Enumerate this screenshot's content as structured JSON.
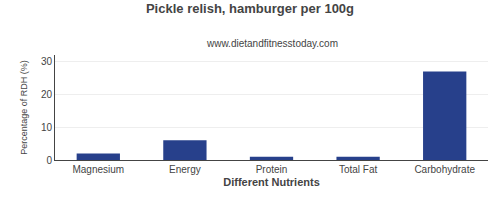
{
  "chart_data": {
    "type": "bar",
    "title": "Pickle relish, hamburger per 100g",
    "subtitle": "www.dietandfitnesstoday.com",
    "categories": [
      "Magnesium",
      "Energy",
      "Protein",
      "Total Fat",
      "Carbohydrate"
    ],
    "values": [
      2.0,
      6.0,
      1.0,
      1.0,
      27.0
    ],
    "color": "#27408B",
    "xlabel": "Different Nutrients",
    "ylabel": "Percentage of RDH (%)",
    "ylim": [
      0,
      32
    ],
    "yticks": [
      0,
      10,
      20,
      30
    ],
    "grid": true
  }
}
